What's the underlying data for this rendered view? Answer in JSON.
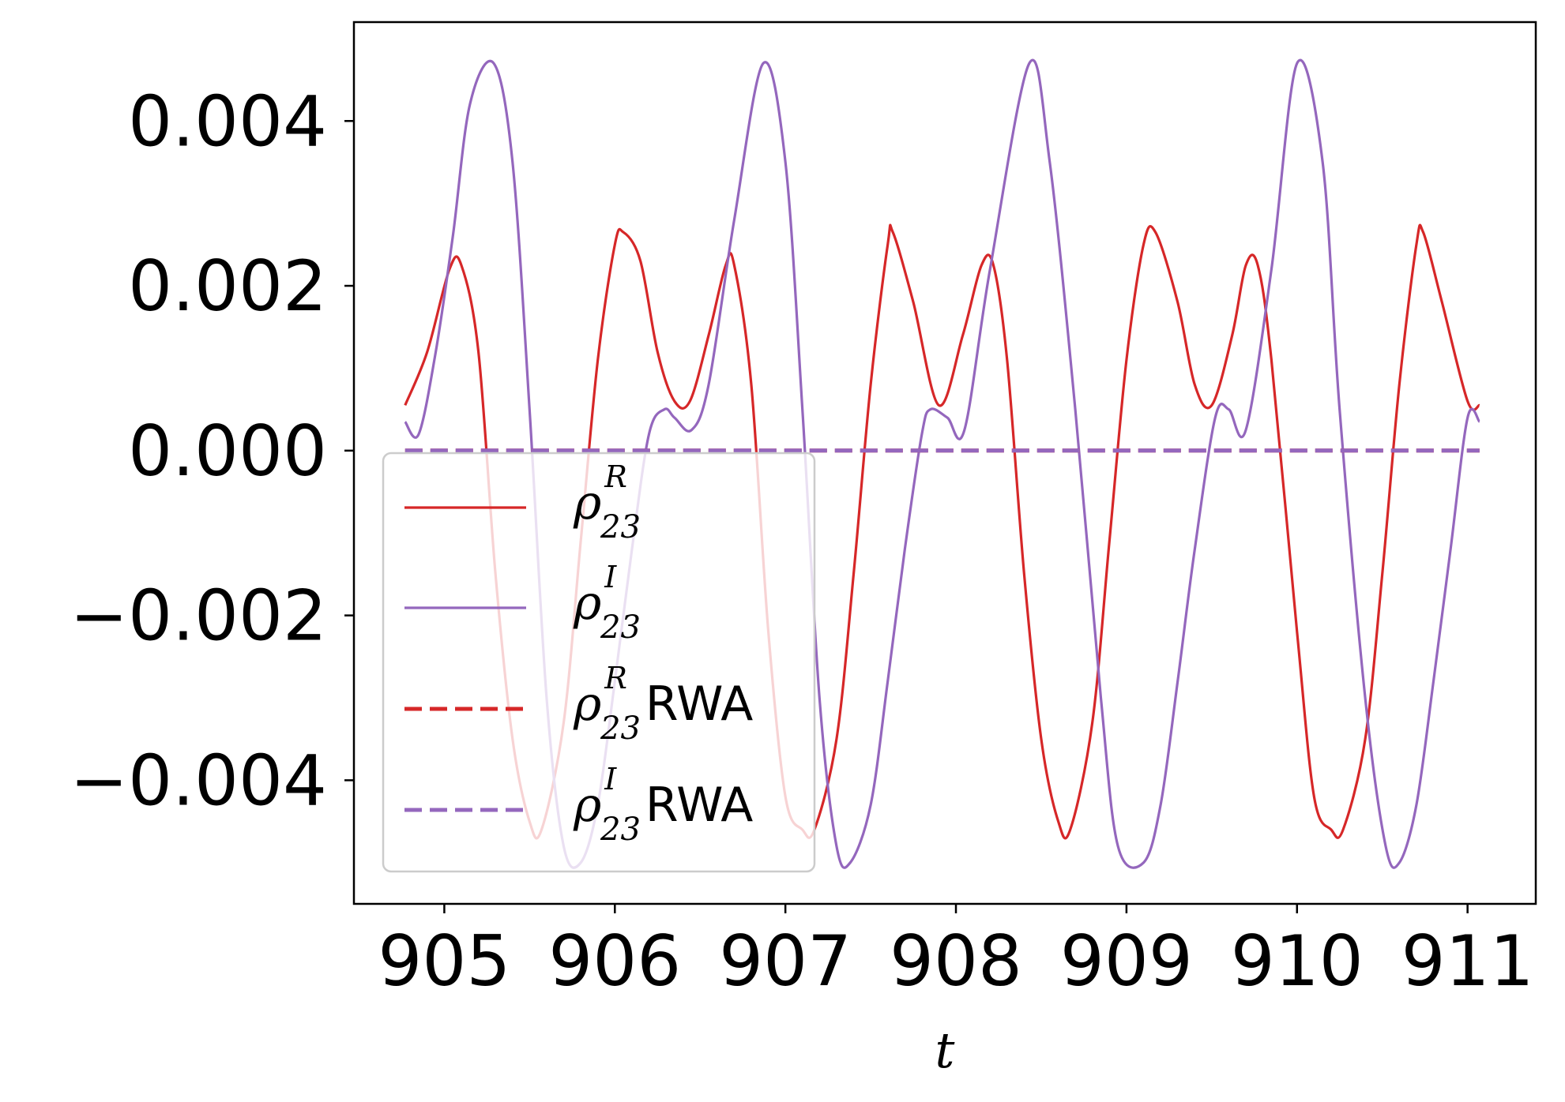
{
  "chart_data": {
    "type": "line",
    "title": "",
    "xlabel": "t",
    "ylabel": "",
    "xlim": [
      904.47,
      911.4
    ],
    "ylim": [
      -0.0055,
      0.0052
    ],
    "xticks": [
      905,
      906,
      907,
      908,
      909,
      910,
      911
    ],
    "xtick_labels": [
      "905",
      "906",
      "907",
      "908",
      "909",
      "910",
      "911"
    ],
    "yticks": [
      0.004,
      0.002,
      0.0,
      -0.002,
      -0.004
    ],
    "ytick_labels": [
      "0.004",
      "0.002",
      "0.000",
      "−0.002",
      "−0.004"
    ],
    "grid": false,
    "legend_position": "lower-left",
    "series": [
      {
        "name": "ρ₂₃ᴿ",
        "legend": {
          "symbol": "ρ",
          "sup": "R",
          "sub": "23",
          "suffix": ""
        },
        "color": "#d62728",
        "style": "solid",
        "x": [
          904.77,
          904.9,
          905.03,
          905.1,
          905.2,
          905.3,
          905.4,
          905.5,
          905.57,
          905.7,
          905.8,
          905.9,
          906.0,
          906.05,
          906.15,
          906.25,
          906.35,
          906.44,
          906.55,
          906.65,
          906.7,
          906.8,
          906.9,
          907.0,
          907.1,
          907.17,
          907.3,
          907.4,
          907.5,
          907.6,
          907.63,
          907.75,
          907.9,
          908.04,
          908.15,
          908.22,
          908.3,
          908.4,
          908.5,
          908.6,
          908.67,
          908.8,
          908.9,
          909.0,
          909.1,
          909.17,
          909.3,
          909.4,
          909.5,
          909.62,
          909.7,
          909.77,
          909.85,
          910.0,
          910.1,
          910.2,
          910.27,
          910.4,
          910.5,
          910.6,
          910.7,
          910.74,
          910.85,
          911.0,
          911.07
        ],
        "values": [
          0.00055,
          0.0012,
          0.0022,
          0.00225,
          0.0012,
          -0.0015,
          -0.0035,
          -0.0045,
          -0.0046,
          -0.0033,
          -0.0011,
          0.0011,
          0.0025,
          0.00265,
          0.0023,
          0.0012,
          0.0006,
          0.0006,
          0.0014,
          0.00225,
          0.00225,
          0.0008,
          -0.0022,
          -0.0042,
          -0.0046,
          -0.0046,
          -0.0035,
          -0.0015,
          0.0008,
          0.0025,
          0.00265,
          0.0018,
          0.00055,
          0.0014,
          0.00225,
          0.00225,
          0.0011,
          -0.0015,
          -0.0035,
          -0.0045,
          -0.0046,
          -0.0033,
          -0.0011,
          0.0011,
          0.0025,
          0.00265,
          0.0018,
          0.0008,
          0.00055,
          0.0014,
          0.00225,
          0.00225,
          0.0011,
          -0.0022,
          -0.0042,
          -0.0046,
          -0.0046,
          -0.0035,
          -0.0015,
          0.0008,
          0.0025,
          0.00265,
          0.0018,
          0.0006,
          0.00055
        ]
      },
      {
        "name": "ρ₂₃ᴵ",
        "legend": {
          "symbol": "ρ",
          "sup": "I",
          "sub": "23",
          "suffix": ""
        },
        "color": "#9467bd",
        "style": "solid",
        "x": [
          904.77,
          904.85,
          904.95,
          905.05,
          905.15,
          905.29,
          905.4,
          905.5,
          905.6,
          905.7,
          905.8,
          905.9,
          906.0,
          906.1,
          906.2,
          906.29,
          906.35,
          906.45,
          906.55,
          906.7,
          906.87,
          907.0,
          907.1,
          907.2,
          907.3,
          907.38,
          907.5,
          907.6,
          907.7,
          907.8,
          907.85,
          907.95,
          908.05,
          908.2,
          908.43,
          908.55,
          908.7,
          908.85,
          908.95,
          909.1,
          909.2,
          909.3,
          909.4,
          909.52,
          909.6,
          909.7,
          909.85,
          910.0,
          910.15,
          910.25,
          910.4,
          910.52,
          910.6,
          910.7,
          910.8,
          910.9,
          911.0,
          911.07
        ],
        "values": [
          0.00035,
          0.0002,
          0.0012,
          0.0026,
          0.0042,
          0.0047,
          0.0035,
          0.0005,
          -0.003,
          -0.0048,
          -0.005,
          -0.0043,
          -0.0028,
          -0.0012,
          0.0002,
          0.0005,
          0.0004,
          0.00025,
          0.0008,
          0.0028,
          0.0047,
          0.0035,
          0.0005,
          -0.003,
          -0.0048,
          -0.005,
          -0.0043,
          -0.0028,
          -0.0012,
          0.0002,
          0.0005,
          0.0004,
          0.00025,
          0.0022,
          0.0047,
          0.0035,
          0.0005,
          -0.003,
          -0.0048,
          -0.005,
          -0.0043,
          -0.0028,
          -0.0012,
          0.0004,
          0.0005,
          0.00025,
          0.0022,
          0.0047,
          0.0035,
          0.0005,
          -0.003,
          -0.0048,
          -0.005,
          -0.0043,
          -0.0028,
          -0.0012,
          0.0004,
          0.00035
        ]
      },
      {
        "name": "ρ₂₃ᴿ RWA",
        "legend": {
          "symbol": "ρ",
          "sup": "R",
          "sub": "23",
          "suffix": "RWA"
        },
        "color": "#d62728",
        "style": "dashed",
        "x": [
          904.77,
          911.07
        ],
        "values": [
          0.0,
          0.0
        ]
      },
      {
        "name": "ρ₂₃ᴵ RWA",
        "legend": {
          "symbol": "ρ",
          "sup": "I",
          "sub": "23",
          "suffix": "RWA"
        },
        "color": "#9467bd",
        "style": "dashed",
        "x": [
          904.77,
          911.07
        ],
        "values": [
          0.0,
          0.0
        ]
      }
    ]
  }
}
